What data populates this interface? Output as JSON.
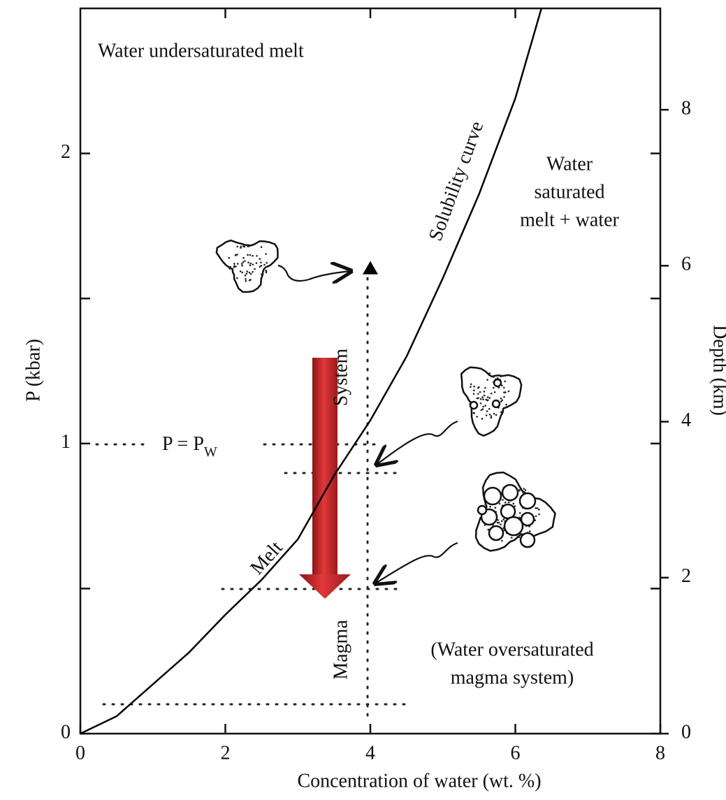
{
  "chart_data": {
    "type": "line",
    "x_label": "Concentration of water (wt. %)",
    "y_label": "P (kbar)",
    "y2_label": "Depth (km)",
    "xlim": [
      0,
      8
    ],
    "xticks": [
      0,
      2,
      4,
      6,
      8
    ],
    "xticks_top": [
      2,
      4,
      6
    ],
    "ylim": [
      0,
      2.5
    ],
    "yticks": [
      0,
      1,
      2
    ],
    "yminor": [
      0.5,
      1.5
    ],
    "y2lim": [
      0,
      9.3
    ],
    "y2ticks": [
      0,
      2,
      4,
      6,
      8
    ],
    "series": [
      {
        "name": "Solubility curve",
        "color": "#000000",
        "x": [
          0,
          0.5,
          1,
          1.5,
          2,
          2.5,
          3,
          3.5,
          4,
          4.5,
          5,
          5.5,
          6,
          6.36
        ],
        "values": [
          0,
          0.06,
          0.17,
          0.28,
          0.41,
          0.53,
          0.67,
          0.89,
          1.08,
          1.3,
          1.57,
          1.86,
          2.19,
          2.5
        ]
      }
    ],
    "marker": {
      "x": 4,
      "y": 1.6
    },
    "annotations": [
      {
        "lines": [
          "Water undersaturated melt"
        ]
      },
      {
        "lines": [
          "Water",
          "saturated",
          "melt + water"
        ]
      },
      {
        "lines": [
          "Solubility curve"
        ]
      },
      {
        "lines": [
          "System"
        ]
      },
      {
        "lines": [
          "Magma"
        ]
      },
      {
        "lines": [
          "Melt"
        ]
      },
      {
        "lines": [
          "(Water oversaturated",
          "magma system)"
        ]
      }
    ],
    "pressure_label": {
      "main": "P = P",
      "sub": "W"
    }
  }
}
